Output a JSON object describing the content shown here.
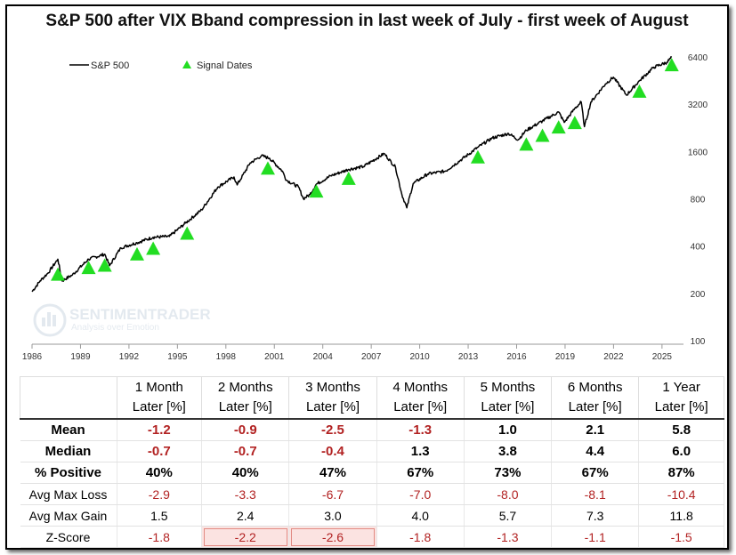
{
  "title": "S&P 500 after VIX Bband compression in last week of July - first week of August",
  "watermark": {
    "name": "SENTIMENTRADER",
    "tagline": "Analysis over Emotion"
  },
  "chart_data": {
    "type": "line",
    "scale": "log",
    "xlim": [
      1986,
      2026
    ],
    "ylim": [
      100,
      7000
    ],
    "x_ticks": [
      "1986",
      "1989",
      "1992",
      "1995",
      "1998",
      "2001",
      "2004",
      "2007",
      "2010",
      "2013",
      "2016",
      "2019",
      "2022",
      "2025"
    ],
    "y_ticks": [
      "100",
      "200",
      "400",
      "800",
      "1600",
      "3200",
      "6400"
    ],
    "legend": {
      "placement": "top-left",
      "series_label": "S&P 500",
      "signal_label": "Signal Dates"
    },
    "colors": {
      "line": "#000000",
      "signal": "#22dd22"
    },
    "series": [
      {
        "name": "S&P 500",
        "x": [
          1986.0,
          1986.5,
          1987.0,
          1987.6,
          1987.85,
          1988.5,
          1989.5,
          1990.5,
          1990.8,
          1991.5,
          1992.5,
          1993.5,
          1994.5,
          1995.5,
          1996.5,
          1997.5,
          1998.5,
          1998.7,
          1999.5,
          2000.2,
          2000.7,
          2001.5,
          2001.75,
          2002.5,
          2002.8,
          2003.2,
          2003.6,
          2004.5,
          2005.6,
          2006.5,
          2007.8,
          2008.5,
          2008.9,
          2009.2,
          2009.6,
          2010.5,
          2011.6,
          2012.5,
          2013.6,
          2014.5,
          2015.5,
          2016.1,
          2016.6,
          2017.6,
          2018.6,
          2018.95,
          2019.6,
          2020.0,
          2020.2,
          2020.6,
          2021.5,
          2021.99,
          2022.8,
          2023.6,
          2024.5,
          2025.3,
          2025.6
        ],
        "y": [
          205,
          240,
          270,
          330,
          240,
          262,
          330,
          355,
          300,
          390,
          420,
          455,
          460,
          560,
          680,
          950,
          1100,
          980,
          1350,
          1500,
          1450,
          1200,
          1050,
          950,
          800,
          850,
          990,
          1120,
          1230,
          1280,
          1550,
          1270,
          850,
          700,
          1000,
          1150,
          1200,
          1400,
          1700,
          1950,
          2080,
          1900,
          2180,
          2500,
          2850,
          2450,
          3000,
          3300,
          2300,
          3300,
          4300,
          4750,
          3650,
          4500,
          5500,
          5900,
          6350
        ]
      }
    ],
    "signals": [
      {
        "x": 1987.6,
        "y": 260
      },
      {
        "x": 1989.5,
        "y": 287
      },
      {
        "x": 1990.5,
        "y": 297
      },
      {
        "x": 1992.5,
        "y": 350
      },
      {
        "x": 1993.5,
        "y": 380
      },
      {
        "x": 1995.6,
        "y": 475
      },
      {
        "x": 2000.6,
        "y": 1230
      },
      {
        "x": 2003.6,
        "y": 880
      },
      {
        "x": 2005.6,
        "y": 1060
      },
      {
        "x": 2013.6,
        "y": 1450
      },
      {
        "x": 2016.6,
        "y": 1750
      },
      {
        "x": 2017.6,
        "y": 1990
      },
      {
        "x": 2018.6,
        "y": 2250
      },
      {
        "x": 2019.6,
        "y": 2400
      },
      {
        "x": 2023.6,
        "y": 3800
      },
      {
        "x": 2025.6,
        "y": 5600
      }
    ]
  },
  "table": {
    "headers": [
      {
        "line1": "1 Month",
        "line2": "Later [%]"
      },
      {
        "line1": "2 Months",
        "line2": "Later [%]"
      },
      {
        "line1": "3 Months",
        "line2": "Later [%]"
      },
      {
        "line1": "4 Months",
        "line2": "Later [%]"
      },
      {
        "line1": "5 Months",
        "line2": "Later [%]"
      },
      {
        "line1": "6 Months",
        "line2": "Later [%]"
      },
      {
        "line1": "1 Year",
        "line2": "Later [%]"
      }
    ],
    "rows": [
      {
        "label": "Mean",
        "values": [
          "-1.2",
          "-0.9",
          "-2.5",
          "-1.3",
          "1.0",
          "2.1",
          "5.8"
        ]
      },
      {
        "label": "Median",
        "values": [
          "-0.7",
          "-0.7",
          "-0.4",
          "1.3",
          "3.8",
          "4.4",
          "6.0"
        ]
      },
      {
        "label": "% Positive",
        "values": [
          "40%",
          "40%",
          "47%",
          "67%",
          "73%",
          "67%",
          "87%"
        ]
      },
      {
        "label": "Avg Max Loss",
        "values": [
          "-2.9",
          "-3.3",
          "-6.7",
          "-7.0",
          "-8.0",
          "-8.1",
          "-10.4"
        ]
      },
      {
        "label": "Avg Max Gain",
        "values": [
          "1.5",
          "2.4",
          "3.0",
          "4.0",
          "5.7",
          "7.3",
          "11.8"
        ]
      },
      {
        "label": "Z-Score",
        "values": [
          "-1.8",
          "-2.2",
          "-2.6",
          "-1.8",
          "-1.3",
          "-1.1",
          "-1.5"
        ]
      }
    ]
  }
}
